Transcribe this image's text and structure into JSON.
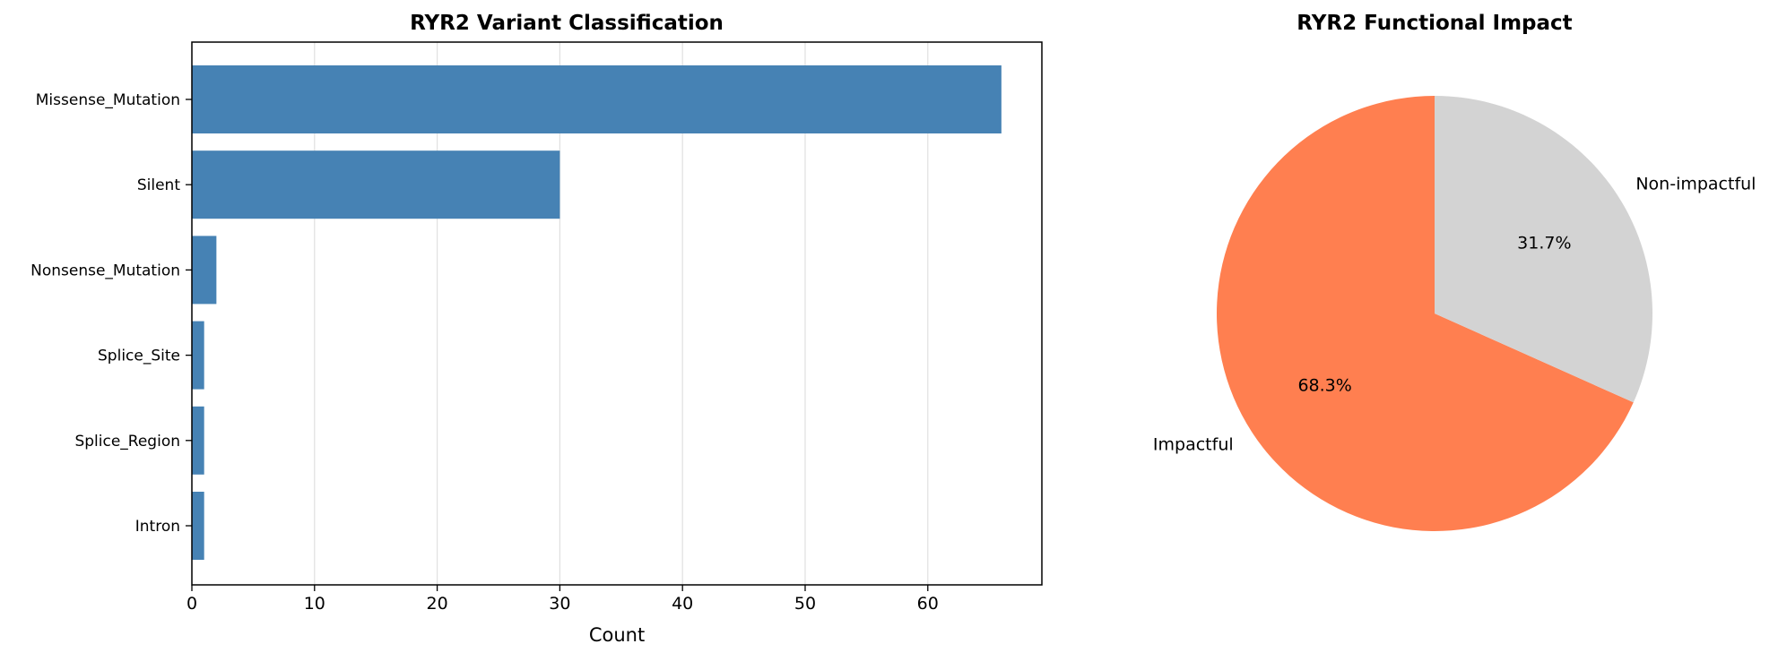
{
  "chart_data": [
    {
      "type": "bar",
      "orientation": "horizontal",
      "title": "RYR2 Variant Classification",
      "xlabel": "Count",
      "ylabel": "",
      "categories": [
        "Missense_Mutation",
        "Silent",
        "Nonsense_Mutation",
        "Splice_Site",
        "Splice_Region",
        "Intron"
      ],
      "values": [
        66,
        30,
        2,
        1,
        1,
        1
      ],
      "xlim": [
        0,
        69.3
      ],
      "xticks": [
        0,
        10,
        20,
        30,
        40,
        50,
        60
      ],
      "grid": "vertical",
      "bar_color": "#4682b4"
    },
    {
      "type": "pie",
      "title": "RYR2 Functional Impact",
      "labels": [
        "Impactful",
        "Non-impactful"
      ],
      "values": [
        68.3,
        31.7
      ],
      "pct_labels": [
        "68.3%",
        "31.7%"
      ],
      "colors": [
        "#ff7f50",
        "#d3d3d3"
      ],
      "start_angle_deg": 90,
      "direction": "counterclockwise"
    }
  ]
}
